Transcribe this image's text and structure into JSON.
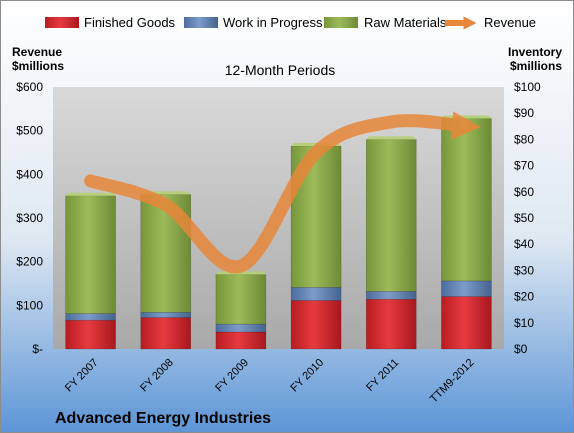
{
  "chart_data": {
    "type": "bar",
    "subtitle": "12-Month Periods",
    "company": "Advanced Energy Industries",
    "categories": [
      "FY 2007",
      "FY 2008",
      "FY 2009",
      "FY 2010",
      "FY 2011",
      "TTM9-2012"
    ],
    "left_axis": {
      "label_line1": "Revenue",
      "label_line2": "$millions",
      "ylim": [
        0,
        600
      ],
      "ticks": [
        "$-",
        "$100",
        "$200",
        "$300",
        "$400",
        "$500",
        "$600"
      ]
    },
    "right_axis": {
      "label_line1": "Inventory",
      "label_line2": "$millions",
      "ylim": [
        0,
        100
      ],
      "ticks": [
        "$0",
        "$10",
        "$20",
        "$30",
        "$40",
        "$50",
        "$60",
        "$70",
        "$80",
        "$90",
        "$100"
      ]
    },
    "stacked_series": [
      {
        "name": "Finished Goods",
        "color": "#cc2229",
        "values": [
          11,
          12,
          6.5,
          18.5,
          19,
          20
        ]
      },
      {
        "name": "Work in Progress",
        "color": "#5b7fb5",
        "values": [
          2.5,
          2,
          3,
          5,
          3,
          6
        ]
      },
      {
        "name": "Raw Materials",
        "color": "#8aab47",
        "values": [
          45,
          45,
          19,
          54,
          58,
          62
        ]
      }
    ],
    "line_series": {
      "name": "Revenue",
      "color": "#e8873a",
      "values": [
        385,
        330,
        190,
        450,
        520,
        510
      ]
    },
    "legend_position": "top",
    "grid": false
  }
}
